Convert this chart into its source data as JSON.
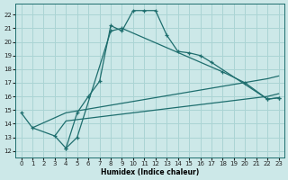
{
  "xlabel": "Humidex (Indice chaleur)",
  "bg_color": "#cce8e8",
  "line_color": "#1e6e6e",
  "grid_color": "#aad4d4",
  "xlim": [
    -0.5,
    23.5
  ],
  "ylim": [
    11.5,
    22.8
  ],
  "xticks": [
    0,
    1,
    2,
    3,
    4,
    5,
    6,
    7,
    8,
    9,
    10,
    11,
    12,
    13,
    14,
    15,
    16,
    17,
    18,
    19,
    20,
    21,
    22,
    23
  ],
  "yticks": [
    12,
    13,
    14,
    15,
    16,
    17,
    18,
    19,
    20,
    21,
    22
  ],
  "line1_x": [
    0,
    1,
    3,
    4,
    5,
    6,
    7,
    8,
    9,
    10,
    11,
    12,
    13,
    14,
    15,
    16,
    17,
    22,
    23
  ],
  "line1_y": [
    14.8,
    13.7,
    13.1,
    12.2,
    14.8,
    16.0,
    17.1,
    21.2,
    20.8,
    22.3,
    22.3,
    22.3,
    20.5,
    19.3,
    19.2,
    19.0,
    18.5,
    15.8,
    15.9
  ],
  "line2_x": [
    4,
    5,
    8,
    9,
    18,
    20,
    22,
    23
  ],
  "line2_y": [
    12.2,
    13.0,
    20.8,
    21.0,
    17.8,
    17.0,
    15.8,
    15.9
  ],
  "line3_x": [
    1,
    4,
    22,
    23
  ],
  "line3_y": [
    13.7,
    14.8,
    17.3,
    17.5
  ],
  "line4_x": [
    3,
    4,
    22,
    23
  ],
  "line4_y": [
    13.1,
    14.2,
    16.0,
    16.2
  ]
}
